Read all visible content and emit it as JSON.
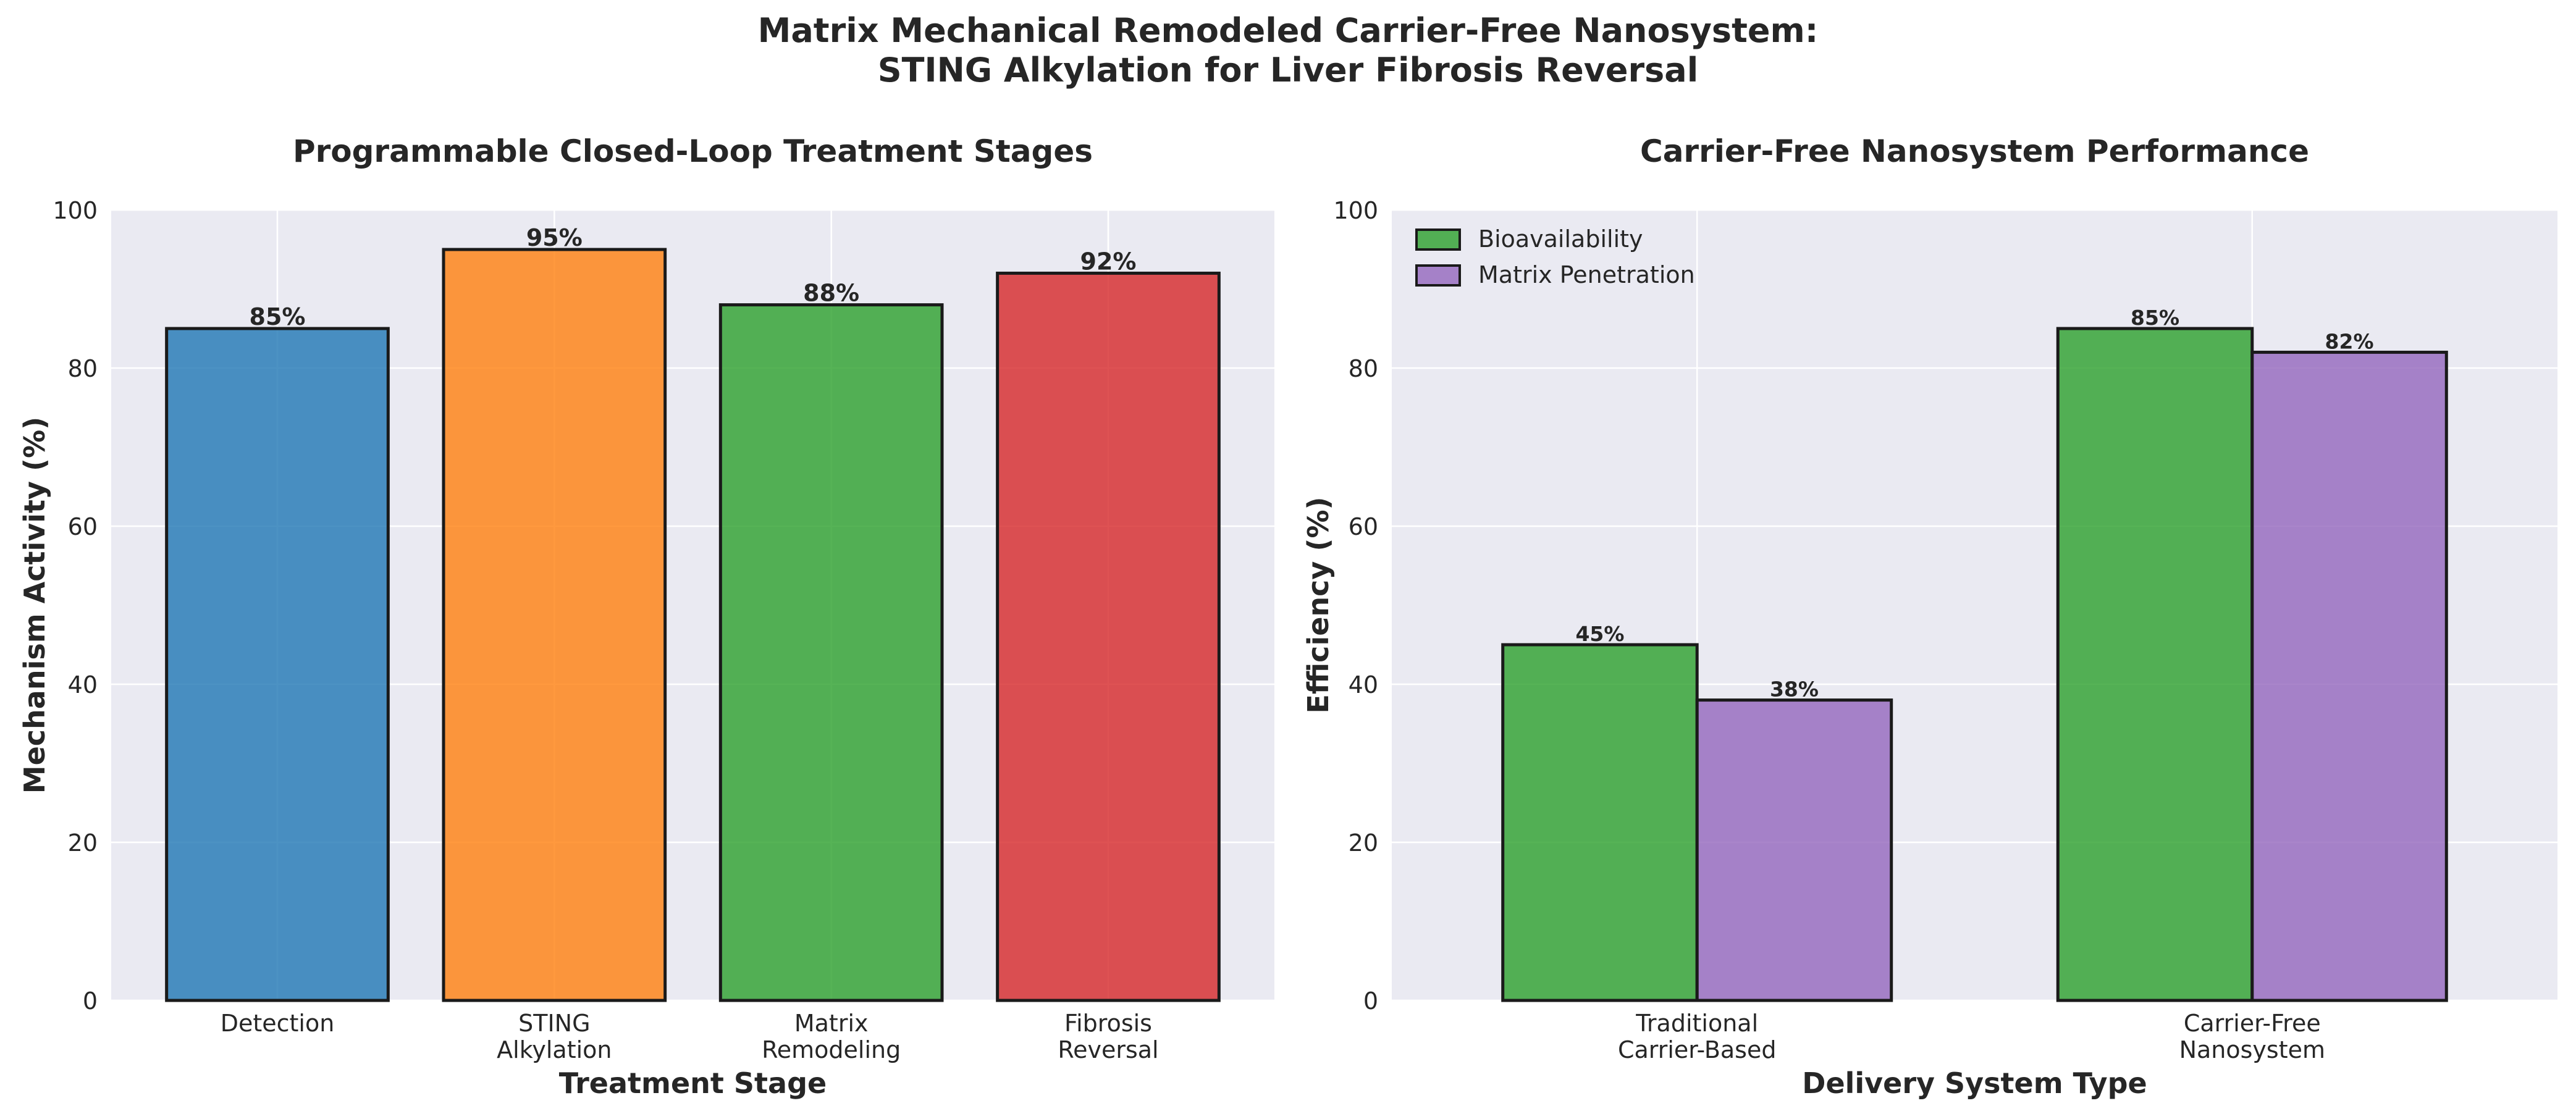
{
  "figure": {
    "title_lines": [
      "Matrix Mechanical Remodeled Carrier-Free Nanosystem:",
      "STING Alkylation for Liver Fibrosis Reversal"
    ]
  },
  "chart_data": [
    {
      "type": "bar",
      "title": "Programmable Closed-Loop Treatment Stages",
      "xlabel": "Treatment Stage",
      "ylabel": "Mechanism Activity (%)",
      "categories": [
        [
          "Detection"
        ],
        [
          "STING",
          "Alkylation"
        ],
        [
          "Matrix",
          "Remodeling"
        ],
        [
          "Fibrosis",
          "Reversal"
        ]
      ],
      "values": [
        85,
        95,
        88,
        92
      ],
      "value_labels": [
        "85%",
        "95%",
        "88%",
        "92%"
      ],
      "colors": [
        "#1f77b4",
        "#ff7f0e",
        "#2ca02c",
        "#d62728"
      ],
      "ylim": [
        0,
        100
      ],
      "yticks": [
        0,
        20,
        40,
        60,
        80,
        100
      ],
      "grid": true
    },
    {
      "type": "bar",
      "title": "Carrier-Free Nanosystem Performance",
      "xlabel": "Delivery System Type",
      "ylabel": "Efficiency (%)",
      "categories": [
        [
          "Traditional",
          "Carrier-Based"
        ],
        [
          "Carrier-Free",
          "Nanosystem"
        ]
      ],
      "series": [
        {
          "name": "Bioavailability",
          "values": [
            45,
            85
          ],
          "value_labels": [
            "45%",
            "85%"
          ],
          "color": "#2ca02c"
        },
        {
          "name": "Matrix Penetration",
          "values": [
            38,
            82
          ],
          "value_labels": [
            "38%",
            "82%"
          ],
          "color": "#9467bd"
        }
      ],
      "legend": "top-left",
      "ylim": [
        0,
        100
      ],
      "yticks": [
        0,
        20,
        40,
        60,
        80,
        100
      ],
      "grid": true
    }
  ]
}
